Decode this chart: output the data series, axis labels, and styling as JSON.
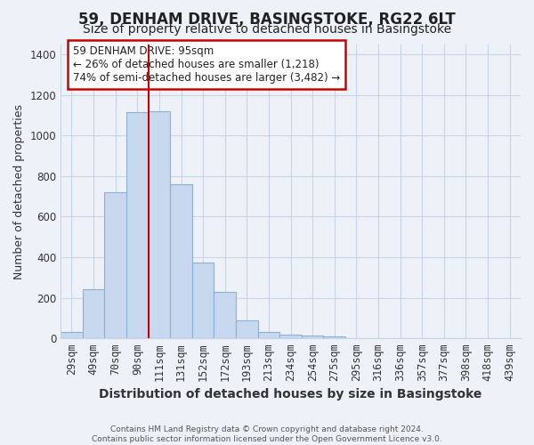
{
  "title": "59, DENHAM DRIVE, BASINGSTOKE, RG22 6LT",
  "subtitle": "Size of property relative to detached houses in Basingstoke",
  "xlabel": "Distribution of detached houses by size in Basingstoke",
  "ylabel": "Number of detached properties",
  "footer_line1": "Contains HM Land Registry data © Crown copyright and database right 2024.",
  "footer_line2": "Contains public sector information licensed under the Open Government Licence v3.0.",
  "bar_labels": [
    "29sqm",
    "49sqm",
    "70sqm",
    "90sqm",
    "111sqm",
    "131sqm",
    "152sqm",
    "172sqm",
    "193sqm",
    "213sqm",
    "234sqm",
    "254sqm",
    "275sqm",
    "295sqm",
    "316sqm",
    "336sqm",
    "357sqm",
    "377sqm",
    "398sqm",
    "418sqm",
    "439sqm"
  ],
  "bar_values": [
    30,
    240,
    720,
    1115,
    1120,
    760,
    375,
    230,
    90,
    30,
    20,
    15,
    8,
    0,
    0,
    0,
    0,
    0,
    0,
    0,
    0
  ],
  "bar_color": "#c8d8ee",
  "bar_edge_color": "#8ab0d4",
  "vline_x_idx": 4,
  "vline_color": "#cc0000",
  "annotation_text": "59 DENHAM DRIVE: 95sqm\n← 26% of detached houses are smaller (1,218)\n74% of semi-detached houses are larger (3,482) →",
  "annotation_box_facecolor": "#ffffff",
  "annotation_box_edgecolor": "#cc0000",
  "ylim": [
    0,
    1450
  ],
  "yticks": [
    0,
    200,
    400,
    600,
    800,
    1000,
    1200,
    1400
  ],
  "grid_color": "#c8d4e8",
  "background_color": "#eef2f8",
  "title_fontsize": 12,
  "subtitle_fontsize": 10,
  "xlabel_fontsize": 10,
  "ylabel_fontsize": 9,
  "tick_fontsize": 8.5,
  "annotation_fontsize": 8.5
}
